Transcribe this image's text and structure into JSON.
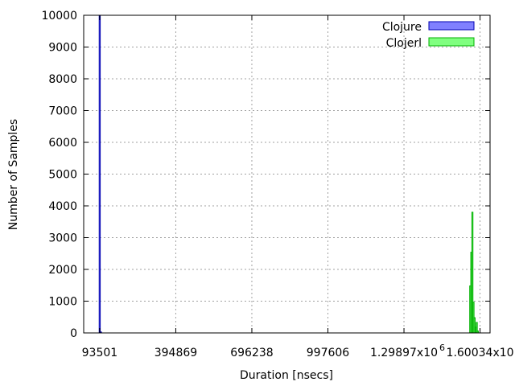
{
  "chart_data": {
    "type": "bar",
    "xlabel": "Duration [nsecs]",
    "ylabel": "Number of Samples",
    "xlim": [
      30000,
      1640000
    ],
    "ylim": [
      0,
      10000
    ],
    "grid": true,
    "legend_position": "top-right",
    "x_ticks": [
      {
        "value": 93501,
        "label": "93501"
      },
      {
        "value": 394869,
        "label": "394869"
      },
      {
        "value": 696238,
        "label": "696238"
      },
      {
        "value": 997606,
        "label": "997606"
      },
      {
        "value": 1298970,
        "label": "1.29897x10"
      },
      {
        "value": 1600340,
        "label": "1.60034x10"
      }
    ],
    "x_tick_exponent": "6",
    "y_ticks": [
      0,
      1000,
      2000,
      3000,
      4000,
      5000,
      6000,
      7000,
      8000,
      9000,
      10000
    ],
    "series": [
      {
        "name": "Clojure",
        "color": "#8080ff",
        "edge_color": "#0000b0",
        "bars": [
          {
            "x": 93501,
            "width": 4300,
            "value": 10000
          },
          {
            "x": 98300,
            "width": 4300,
            "value": 30
          }
        ]
      },
      {
        "name": "Clojerl",
        "color": "#80ff80",
        "edge_color": "#00b000",
        "bars": [
          {
            "x": 1561500,
            "width": 4300,
            "value": 1480
          },
          {
            "x": 1565800,
            "width": 4300,
            "value": 2540
          },
          {
            "x": 1570100,
            "width": 4300,
            "value": 3800
          },
          {
            "x": 1574400,
            "width": 4300,
            "value": 970
          },
          {
            "x": 1578700,
            "width": 4300,
            "value": 480
          },
          {
            "x": 1583000,
            "width": 4300,
            "value": 180
          },
          {
            "x": 1587300,
            "width": 4300,
            "value": 330
          },
          {
            "x": 1591600,
            "width": 4300,
            "value": 60
          }
        ]
      }
    ]
  }
}
